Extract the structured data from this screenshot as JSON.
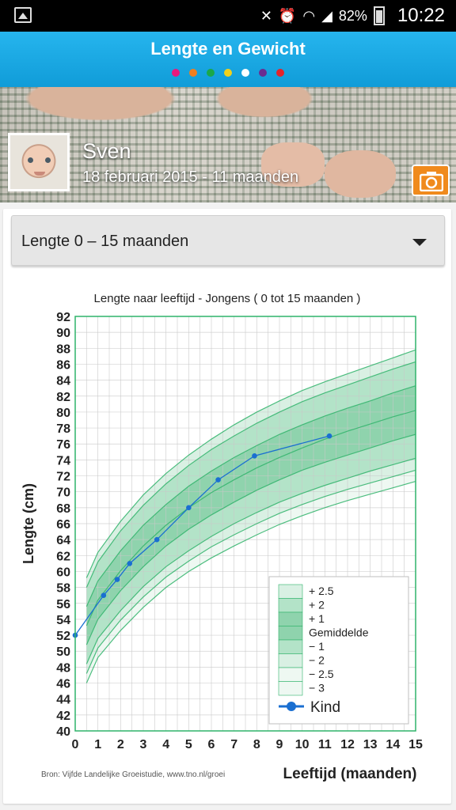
{
  "status": {
    "battery": "82%",
    "time": "10:22"
  },
  "app": {
    "title": "Lengte en Gewicht",
    "page_dots": [
      "#e8197d",
      "#f07f1e",
      "#1aa84a",
      "#f2d11a",
      "#ffffff",
      "#6a2c91",
      "#e3242b"
    ]
  },
  "profile": {
    "name": "Sven",
    "subtitle": "18 februari 2015 - 11 maanden"
  },
  "dropdown": {
    "selected": "Lengte 0 – 15 maanden"
  },
  "chart_data": {
    "type": "line",
    "title": "Lengte naar leeftijd - Jongens ( 0 tot 15 maanden )",
    "xlabel": "Leeftijd (maanden)",
    "ylabel": "Lengte (cm)",
    "xlim": [
      0,
      15
    ],
    "ylim": [
      40,
      92
    ],
    "x_ticks": [
      0,
      1,
      2,
      3,
      4,
      5,
      6,
      7,
      8,
      9,
      10,
      11,
      12,
      13,
      14,
      15
    ],
    "y_ticks": [
      40,
      42,
      44,
      46,
      48,
      50,
      52,
      54,
      56,
      58,
      60,
      62,
      64,
      66,
      68,
      70,
      72,
      74,
      76,
      78,
      80,
      82,
      84,
      86,
      88,
      90,
      92
    ],
    "source": "Bron: Vijfde Landelijke Groeistudie, www.tno.nl/groei",
    "reference_x": [
      0.5,
      1,
      2,
      3,
      4,
      5,
      6,
      7,
      8,
      9,
      10,
      11,
      12,
      13,
      14,
      15
    ],
    "reference_bands": [
      {
        "name": "+ 2.5",
        "values": [
          59.2,
          62.4,
          66.3,
          69.6,
          72.3,
          74.6,
          76.6,
          78.4,
          80.0,
          81.4,
          82.7,
          83.8,
          84.8,
          85.8,
          86.8,
          87.8
        ]
      },
      {
        "name": "+ 2",
        "values": [
          58.0,
          61.2,
          65.1,
          68.3,
          71.0,
          73.3,
          75.3,
          77.0,
          78.6,
          80.0,
          81.3,
          82.4,
          83.4,
          84.4,
          85.4,
          86.3
        ]
      },
      {
        "name": "+ 1",
        "values": [
          55.6,
          58.8,
          62.6,
          65.8,
          68.4,
          70.7,
          72.6,
          74.3,
          75.8,
          77.2,
          78.4,
          79.5,
          80.5,
          81.4,
          82.4,
          83.3
        ]
      },
      {
        "name": "Gemiddelde",
        "values": [
          53.2,
          56.4,
          60.1,
          63.2,
          65.8,
          68.0,
          69.9,
          71.5,
          73.0,
          74.3,
          75.5,
          76.6,
          77.6,
          78.5,
          79.4,
          80.2
        ]
      },
      {
        "name": "− 1",
        "values": [
          50.8,
          54.0,
          57.6,
          60.6,
          63.2,
          65.3,
          67.1,
          68.7,
          70.2,
          71.5,
          72.7,
          73.7,
          74.6,
          75.5,
          76.4,
          77.2
        ]
      },
      {
        "name": "− 2",
        "values": [
          48.4,
          51.6,
          55.1,
          58.1,
          60.6,
          62.6,
          64.4,
          66.0,
          67.4,
          68.7,
          69.8,
          70.8,
          71.7,
          72.6,
          73.4,
          74.2
        ]
      },
      {
        "name": "− 2.5",
        "values": [
          47.2,
          50.4,
          53.9,
          56.8,
          59.3,
          61.3,
          63.1,
          64.6,
          66.0,
          67.3,
          68.4,
          69.4,
          70.3,
          71.1,
          71.9,
          72.7
        ]
      },
      {
        "name": "− 3",
        "values": [
          46.0,
          49.2,
          52.6,
          55.5,
          58.0,
          60.0,
          61.7,
          63.2,
          64.6,
          65.9,
          67.0,
          68.0,
          68.9,
          69.7,
          70.5,
          71.3
        ]
      }
    ],
    "series": [
      {
        "name": "Kind",
        "x": [
          0,
          1.25,
          1.85,
          2.4,
          3.6,
          5.0,
          6.3,
          7.9,
          11.2
        ],
        "y": [
          52,
          57,
          59,
          61,
          64,
          68,
          71.5,
          74.5,
          77
        ]
      }
    ],
    "legend_position": "bottom-right",
    "colors": {
      "series": "#1a6fd1",
      "band_outer": "#d9f0e3",
      "band_mid": "#b3e3c8",
      "band_inner": "#8fd3ad",
      "grid": "#c8c8c8",
      "border": "#2fb36a"
    }
  }
}
